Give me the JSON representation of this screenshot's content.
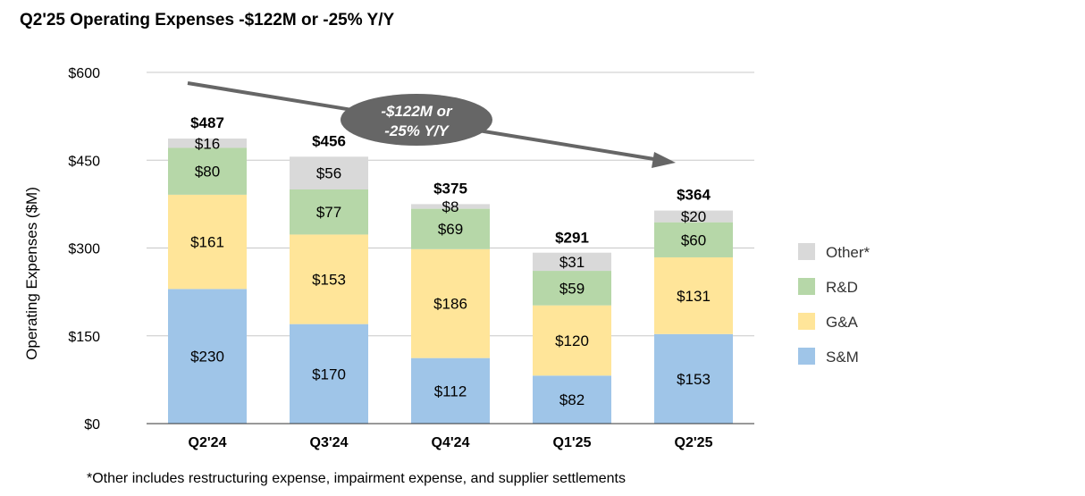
{
  "title": "Q2'25 Operating Expenses -$122M or -25% Y/Y",
  "footnote": "*Other includes restructuring expense, impairment expense, and supplier settlements",
  "chart_data": {
    "type": "bar",
    "stacked": true,
    "categories": [
      "Q2'24",
      "Q3'24",
      "Q4'24",
      "Q1'25",
      "Q2'25"
    ],
    "series": [
      {
        "name": "S&M",
        "values": [
          230,
          170,
          112,
          82,
          153
        ],
        "labels": [
          "$230",
          "$170",
          "$112",
          "$82",
          "$153"
        ],
        "color": "#9fc5e8"
      },
      {
        "name": "G&A",
        "values": [
          161,
          153,
          186,
          120,
          131
        ],
        "labels": [
          "$161",
          "$153",
          "$186",
          "$120",
          "$131"
        ],
        "color": "#ffe599"
      },
      {
        "name": "R&D",
        "values": [
          80,
          77,
          69,
          59,
          60
        ],
        "labels": [
          "$80",
          "$77",
          "$69",
          "$59",
          "$60"
        ],
        "color": "#b6d7a8"
      },
      {
        "name": "Other*",
        "values": [
          16,
          56,
          8,
          31,
          20
        ],
        "labels": [
          "$16",
          "$56",
          "$8",
          "$31",
          "$20"
        ],
        "color": "#d9d9d9"
      }
    ],
    "totals": [
      487,
      456,
      375,
      291,
      364
    ],
    "total_labels": [
      "$487",
      "$456",
      "$375",
      "$291",
      "$364"
    ],
    "ylabel": "Operating Expenses ($M)",
    "xlabel": "",
    "ylim": [
      0,
      600
    ],
    "yticks": [
      0,
      150,
      300,
      450,
      600
    ],
    "ytick_labels": [
      "$0",
      "$150",
      "$300",
      "$450",
      "$600"
    ],
    "legend_order": [
      "Other*",
      "R&D",
      "G&A",
      "S&M"
    ],
    "legend_position": "right",
    "grid": true,
    "annotation": {
      "line1": "-$122M or",
      "line2": "-25% Y/Y",
      "color": "#666666"
    }
  }
}
